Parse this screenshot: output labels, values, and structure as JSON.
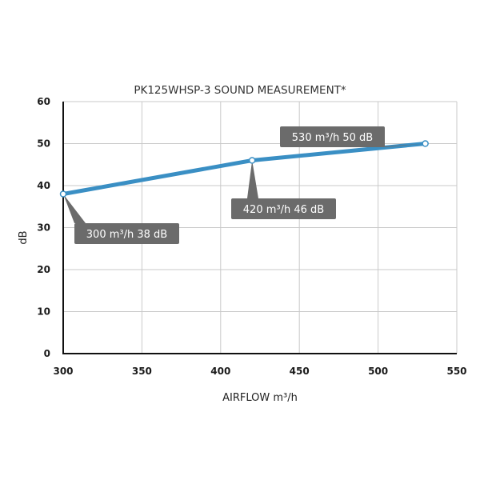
{
  "chart_data": {
    "type": "line",
    "title": "PK125WHSP-3  SOUND MEASUREMENT*",
    "xlabel": "AIRFLOW m³/h",
    "ylabel": "dB",
    "xlim": [
      300,
      550
    ],
    "ylim": [
      0,
      60
    ],
    "x_ticks": [
      300,
      350,
      400,
      450,
      500,
      550
    ],
    "y_ticks": [
      0,
      10,
      20,
      30,
      40,
      50,
      60
    ],
    "grid": true,
    "series": [
      {
        "x": [
          300,
          420,
          530
        ],
        "y": [
          38,
          46,
          50
        ],
        "color": "#3a8fc4"
      }
    ],
    "annotations": [
      {
        "x": 300,
        "y": 38,
        "text": "300 m³/h  38 dB"
      },
      {
        "x": 420,
        "y": 46,
        "text": "420 m³/h  46 dB"
      },
      {
        "x": 530,
        "y": 50,
        "text": "530 m³/h  50 dB"
      }
    ],
    "callout_color": "#6b6b6b"
  }
}
